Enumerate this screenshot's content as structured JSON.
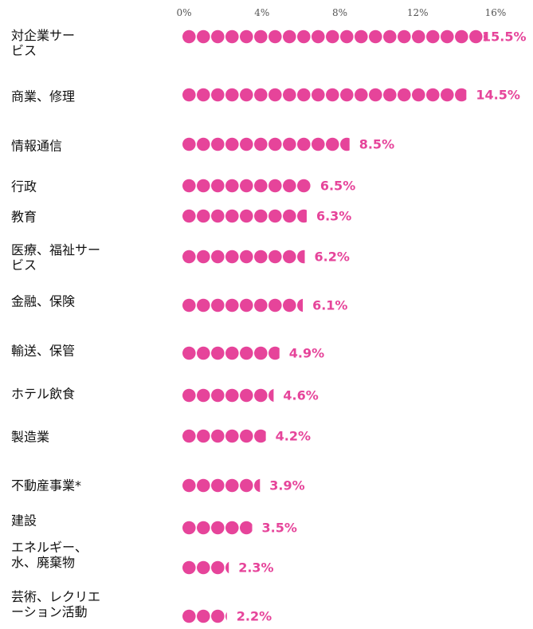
{
  "chart_data": {
    "type": "dot",
    "categories": [
      "対企業サー\nビス",
      "商業、修理",
      "情報通信",
      "行政",
      "教育",
      "医療、福祉サー\nビス",
      "金融、保険",
      "輸送、保管",
      "ホテル飲食",
      "製造業",
      "不動産事業*",
      "建設",
      "エネルギー、\n水、廃棄物",
      "芸術、レクリエ\nーション活動"
    ],
    "values": [
      15.5,
      14.5,
      8.5,
      6.5,
      6.3,
      6.2,
      6.1,
      4.9,
      4.6,
      4.2,
      3.9,
      3.5,
      2.3,
      2.2
    ],
    "value_labels": [
      "15.5%",
      "14.5%",
      "8.5%",
      "6.5%",
      "6.3%",
      "6.2%",
      "6.1%",
      "4.9%",
      "4.6%",
      "4.2%",
      "3.9%",
      "3.5%",
      "2.3%",
      "2.2%"
    ],
    "color": "#e6449a",
    "xlim": [
      0,
      16
    ],
    "xticks": [
      {
        "value": 0,
        "label": "0%"
      },
      {
        "value": 4,
        "label": "4%"
      },
      {
        "value": 8,
        "label": "8%"
      },
      {
        "value": 12,
        "label": "12%"
      },
      {
        "value": 16,
        "label": "16%"
      }
    ]
  }
}
